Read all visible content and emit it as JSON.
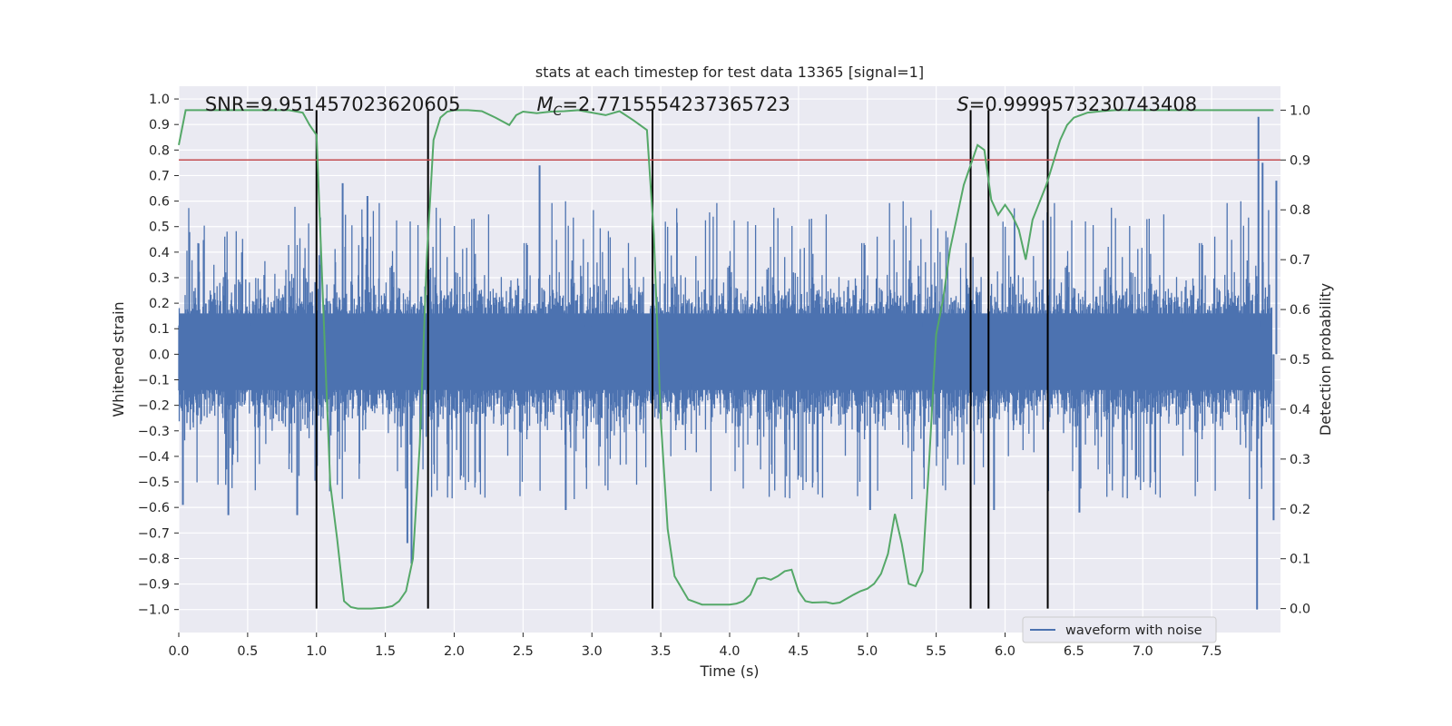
{
  "chart_data": {
    "type": "line",
    "title": "stats at each timestep for test data 13365 [signal=1]",
    "xlabel": "Time (s)",
    "ylabel": "Whitened strain",
    "y2label": "Detection probability",
    "xlim": [
      0.0,
      8.0
    ],
    "ylim": [
      -1.09,
      1.05
    ],
    "y2lim": [
      -0.048,
      1.048
    ],
    "xticks": [
      0.0,
      0.5,
      1.0,
      1.5,
      2.0,
      2.5,
      3.0,
      3.5,
      4.0,
      4.5,
      5.0,
      5.5,
      6.0,
      6.5,
      7.0,
      7.5
    ],
    "xtick_labels": [
      "0.0",
      "0.5",
      "1.0",
      "1.5",
      "2.0",
      "2.5",
      "3.0",
      "3.5",
      "4.0",
      "4.5",
      "5.0",
      "5.5",
      "6.0",
      "6.5",
      "7.0",
      "7.5"
    ],
    "yticks": [
      1.0,
      0.9,
      0.8,
      0.7,
      0.6,
      0.5,
      0.4,
      0.3,
      0.2,
      0.1,
      0.0,
      -0.1,
      -0.2,
      -0.3,
      -0.4,
      -0.5,
      -0.6,
      -0.7,
      -0.8,
      -0.9,
      -1.0
    ],
    "ytick_labels": [
      "1.0",
      "0.9",
      "0.8",
      "0.7",
      "0.6",
      "0.5",
      "0.4",
      "0.3",
      "0.2",
      "0.1",
      "0.0",
      "−0.1",
      "−0.2",
      "−0.3",
      "−0.4",
      "−0.5",
      "−0.6",
      "−0.7",
      "−0.8",
      "−0.9",
      "−1.0"
    ],
    "y2ticks": [
      1.0,
      0.9,
      0.8,
      0.7,
      0.6,
      0.5,
      0.4,
      0.3,
      0.2,
      0.1,
      0.0
    ],
    "y2tick_labels": [
      "1.0",
      "0.9",
      "0.8",
      "0.7",
      "0.6",
      "0.5",
      "0.4",
      "0.3",
      "0.2",
      "0.1",
      "0.0"
    ],
    "grid": true,
    "legend_position": "lower-right",
    "series": [
      {
        "name": "waveform with noise",
        "axis": "left",
        "color": "#4c72b0",
        "style": "noise",
        "typical_amplitude": [
          -0.32,
          0.36
        ],
        "spikes": [
          {
            "x": 0.36,
            "y": -0.63
          },
          {
            "x": 0.86,
            "y": -0.63
          },
          {
            "x": 1.19,
            "y": 0.67
          },
          {
            "x": 1.37,
            "y": 0.62
          },
          {
            "x": 1.66,
            "y": -0.74
          },
          {
            "x": 1.69,
            "y": -0.82
          },
          {
            "x": 2.62,
            "y": 0.74
          },
          {
            "x": 2.81,
            "y": -0.61
          },
          {
            "x": 5.02,
            "y": -0.61
          },
          {
            "x": 5.92,
            "y": -0.61
          },
          {
            "x": 6.54,
            "y": -0.62
          },
          {
            "x": 7.84,
            "y": 0.93
          },
          {
            "x": 7.83,
            "y": -1.0
          },
          {
            "x": 7.87,
            "y": 0.75
          },
          {
            "x": 7.95,
            "y": -0.65
          },
          {
            "x": 0.03,
            "y": -0.59
          },
          {
            "x": 7.97,
            "y": 0.68
          }
        ]
      },
      {
        "name": "",
        "axis": "right",
        "color": "#55a868",
        "x": [
          0.0,
          0.05,
          0.1,
          0.2,
          0.3,
          0.4,
          0.5,
          0.6,
          0.7,
          0.8,
          0.9,
          0.95,
          1.0,
          1.05,
          1.1,
          1.15,
          1.2,
          1.25,
          1.3,
          1.4,
          1.5,
          1.55,
          1.6,
          1.65,
          1.7,
          1.75,
          1.8,
          1.85,
          1.9,
          1.95,
          2.0,
          2.1,
          2.2,
          2.3,
          2.4,
          2.45,
          2.5,
          2.6,
          2.7,
          2.8,
          2.9,
          3.0,
          3.1,
          3.2,
          3.3,
          3.4,
          3.45,
          3.5,
          3.55,
          3.6,
          3.7,
          3.8,
          3.9,
          4.0,
          4.05,
          4.1,
          4.15,
          4.2,
          4.25,
          4.3,
          4.35,
          4.4,
          4.45,
          4.5,
          4.55,
          4.6,
          4.7,
          4.75,
          4.8,
          4.9,
          4.95,
          5.0,
          5.05,
          5.1,
          5.15,
          5.2,
          5.25,
          5.3,
          5.35,
          5.4,
          5.45,
          5.5,
          5.55,
          5.6,
          5.7,
          5.8,
          5.85,
          5.9,
          5.95,
          6.0,
          6.05,
          6.1,
          6.15,
          6.2,
          6.3,
          6.4,
          6.45,
          6.5,
          6.6,
          6.7,
          6.8,
          6.9,
          7.0,
          7.2,
          7.4,
          7.6,
          7.8,
          7.95
        ],
        "values": [
          0.93,
          1.0,
          1.0,
          1.0,
          1.0,
          1.0,
          1.0,
          1.0,
          1.0,
          1.0,
          0.995,
          0.97,
          0.95,
          0.6,
          0.25,
          0.14,
          0.015,
          0.003,
          0.0,
          0.0,
          0.002,
          0.005,
          0.015,
          0.035,
          0.1,
          0.33,
          0.7,
          0.94,
          0.985,
          0.997,
          1.0,
          1.0,
          0.998,
          0.985,
          0.97,
          0.99,
          0.997,
          0.994,
          0.997,
          0.998,
          1.0,
          0.995,
          0.99,
          0.998,
          0.98,
          0.96,
          0.75,
          0.38,
          0.16,
          0.065,
          0.018,
          0.008,
          0.008,
          0.008,
          0.01,
          0.015,
          0.028,
          0.06,
          0.062,
          0.058,
          0.065,
          0.075,
          0.078,
          0.035,
          0.015,
          0.012,
          0.013,
          0.01,
          0.012,
          0.028,
          0.035,
          0.04,
          0.05,
          0.07,
          0.11,
          0.19,
          0.13,
          0.05,
          0.045,
          0.075,
          0.3,
          0.55,
          0.62,
          0.72,
          0.85,
          0.93,
          0.92,
          0.82,
          0.79,
          0.81,
          0.79,
          0.76,
          0.7,
          0.78,
          0.85,
          0.94,
          0.97,
          0.985,
          0.995,
          0.998,
          1.0,
          1.0,
          1.0,
          1.0,
          1.0,
          1.0,
          1.0,
          1.0
        ]
      }
    ],
    "reference_lines": {
      "threshold_right": 0.9,
      "threshold_color": "#c44e52",
      "vertical_x": [
        1.0,
        1.81,
        3.44,
        5.75,
        5.88,
        6.31
      ],
      "vertical_color": "#000000"
    },
    "annotations": [
      {
        "text": "SNR=9.951457023620605",
        "x": 0.19
      },
      {
        "text": "=2.7715554237365723",
        "prefix": "M",
        "sub": "C",
        "x": 2.6
      },
      {
        "text": "=0.9999573230743408",
        "prefix": "S",
        "x": 5.65
      }
    ]
  }
}
